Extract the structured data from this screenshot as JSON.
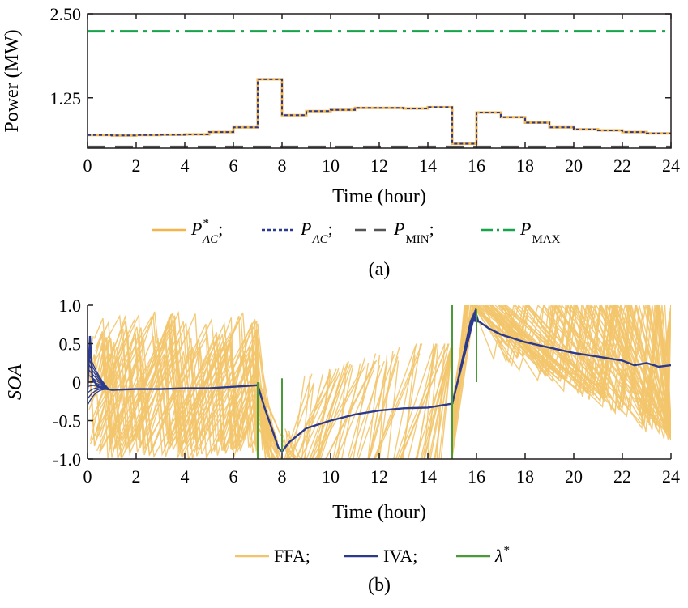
{
  "chart_data": [
    {
      "panel": "(a)",
      "type": "line",
      "xlabel": "Time (hour)",
      "ylabel": "Power (MW)",
      "xlim": [
        0,
        24
      ],
      "ylim": [
        0.5,
        2.5
      ],
      "yticks": [
        "1.25",
        "2.50"
      ],
      "xticks": [
        0,
        2,
        4,
        6,
        8,
        10,
        12,
        14,
        16,
        18,
        20,
        22,
        24
      ],
      "grid": false,
      "legend_position": "bottom",
      "legend": [
        {
          "base": "P",
          "sup": "*",
          "sub": "AC",
          "sep": ";",
          "style": "solid",
          "color": "#f3b44a"
        },
        {
          "base": "P",
          "sup": "",
          "sub": "AC",
          "sep": ";",
          "style": "dotted",
          "color": "#2b3a8c"
        },
        {
          "base": "P",
          "sup": "",
          "sub": "MIN",
          "sep": ";",
          "style": "dashed",
          "color": "#555555"
        },
        {
          "base": "P",
          "sup": "",
          "sub": "MAX",
          "sep": "",
          "style": "dashdot",
          "color": "#16a34a"
        }
      ],
      "series": [
        {
          "name": "P*AC",
          "step_x": [
            0,
            1,
            2,
            3,
            4,
            5,
            6,
            7,
            8,
            9,
            10,
            11,
            12,
            13,
            14,
            15,
            16,
            17,
            18,
            19,
            20,
            21,
            22,
            23,
            24
          ],
          "values": [
            0.695,
            0.69,
            0.695,
            0.7,
            0.705,
            0.74,
            0.81,
            1.525,
            0.99,
            1.05,
            1.07,
            1.1,
            1.1,
            1.09,
            1.11,
            0.566,
            1.03,
            0.96,
            0.88,
            0.81,
            0.78,
            0.765,
            0.74,
            0.72
          ]
        },
        {
          "name": "PAC",
          "step_x": [
            0,
            1,
            2,
            3,
            4,
            5,
            6,
            7,
            8,
            9,
            10,
            11,
            12,
            13,
            14,
            15,
            16,
            17,
            18,
            19,
            20,
            21,
            22,
            23,
            24
          ],
          "values": [
            0.695,
            0.69,
            0.695,
            0.7,
            0.705,
            0.74,
            0.81,
            1.525,
            0.99,
            1.05,
            1.07,
            1.1,
            1.1,
            1.09,
            1.11,
            0.566,
            1.03,
            0.96,
            0.88,
            0.81,
            0.78,
            0.765,
            0.74,
            0.72
          ]
        },
        {
          "name": "PMIN",
          "constant": 0.52
        },
        {
          "name": "PMAX",
          "constant": 2.24
        }
      ]
    },
    {
      "panel": "(b)",
      "type": "line",
      "xlabel": "Time (hour)",
      "ylabel": "SOA",
      "xlim": [
        0,
        24
      ],
      "ylim": [
        -1.0,
        1.0
      ],
      "yticks": [
        "-1.0",
        "-0.5",
        "0",
        "0.5",
        "1.0"
      ],
      "xticks": [
        0,
        2,
        4,
        6,
        8,
        10,
        12,
        14,
        16,
        18,
        20,
        22,
        24
      ],
      "grid": false,
      "legend_position": "bottom",
      "legend": [
        {
          "label": "FFA;",
          "style": "solid",
          "color": "#f3c56b"
        },
        {
          "label": "IVA;",
          "style": "solid",
          "color": "#2b3a8c"
        },
        {
          "base": "λ",
          "sup": "*",
          "style": "solid",
          "color": "#4a9a3a"
        }
      ],
      "series": [
        {
          "name": "FFA",
          "note": "many overlapping yellow trajectories"
        },
        {
          "name": "IVA",
          "x": [
            0,
            0.1,
            0.2,
            0.4,
            0.6,
            1,
            2,
            3,
            4,
            5,
            6,
            6.5,
            7,
            7.3,
            7.6,
            7.85,
            8,
            8.3,
            9,
            10,
            11,
            12,
            13,
            14,
            15,
            15.5,
            15.9,
            16.05,
            16.5,
            17,
            18,
            19,
            20,
            21,
            22,
            22.5,
            23,
            23.5,
            24
          ],
          "values": [
            -0.1,
            0.6,
            0.05,
            -0.05,
            -0.08,
            -0.1,
            -0.09,
            -0.09,
            -0.08,
            -0.08,
            -0.06,
            -0.05,
            -0.04,
            -0.35,
            -0.62,
            -0.85,
            -0.9,
            -0.78,
            -0.6,
            -0.5,
            -0.42,
            -0.37,
            -0.34,
            -0.33,
            -0.28,
            0.35,
            0.85,
            0.8,
            0.7,
            0.62,
            0.52,
            0.45,
            0.38,
            0.33,
            0.28,
            0.22,
            0.25,
            0.2,
            0.22
          ]
        },
        {
          "name": "λ*",
          "impulses": [
            {
              "x": 7,
              "from": 0,
              "to": -1
            },
            {
              "x": 8,
              "from": 0.05,
              "to": -0.9
            },
            {
              "x": 15,
              "from": 1,
              "to": -1
            },
            {
              "x": 16,
              "from": 0.95,
              "to": 0
            }
          ]
        }
      ]
    }
  ],
  "captions": {
    "a": "(a)",
    "b": "(b)"
  }
}
